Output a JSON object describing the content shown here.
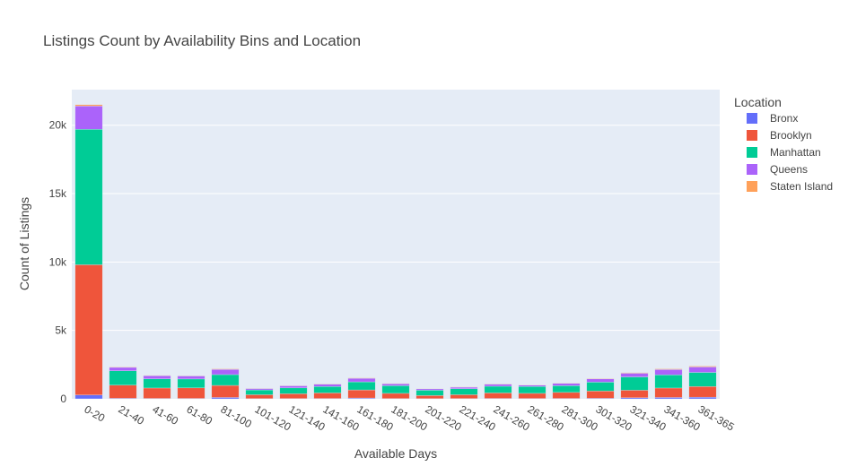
{
  "chart_data": {
    "type": "bar",
    "barmode": "stack",
    "title": "Listings Count by Availability Bins and Location",
    "xlabel": "Available Days",
    "ylabel": "Count of Listings",
    "ylim": [
      0,
      22600
    ],
    "yticks": [
      0,
      5000,
      10000,
      15000,
      20000
    ],
    "ytick_labels": [
      "0",
      "5k",
      "10k",
      "15k",
      "20k"
    ],
    "grid": true,
    "legend_title": "Location",
    "legend_placement": "right",
    "categories": [
      "0-20",
      "21-40",
      "41-60",
      "61-80",
      "81-100",
      "101-120",
      "121-140",
      "141-160",
      "161-180",
      "181-200",
      "201-220",
      "221-240",
      "241-260",
      "261-280",
      "281-300",
      "301-320",
      "321-340",
      "341-360",
      "361-365"
    ],
    "series": [
      {
        "name": "Bronx",
        "color": "#636efa",
        "values": [
          280,
          40,
          30,
          30,
          100,
          15,
          20,
          25,
          60,
          20,
          15,
          20,
          30,
          25,
          30,
          40,
          80,
          100,
          120
        ]
      },
      {
        "name": "Brooklyn",
        "color": "#ef553b",
        "values": [
          9520,
          960,
          760,
          770,
          880,
          285,
          350,
          405,
          590,
          380,
          225,
          280,
          400,
          375,
          440,
          530,
          550,
          690,
          780
        ]
      },
      {
        "name": "Manhattan",
        "color": "#00cc96",
        "values": [
          9900,
          1050,
          670,
          650,
          790,
          350,
          430,
          470,
          590,
          560,
          390,
          440,
          490,
          500,
          490,
          650,
          970,
          960,
          1030
        ]
      },
      {
        "name": "Queens",
        "color": "#ab63fa",
        "values": [
          1700,
          250,
          230,
          220,
          380,
          100,
          150,
          170,
          260,
          140,
          100,
          110,
          150,
          100,
          170,
          240,
          270,
          390,
          400
        ]
      },
      {
        "name": "Staten Island",
        "color": "#ffa15a",
        "values": [
          100,
          30,
          20,
          20,
          40,
          10,
          15,
          20,
          30,
          20,
          10,
          15,
          20,
          15,
          20,
          30,
          40,
          50,
          60
        ]
      }
    ]
  }
}
